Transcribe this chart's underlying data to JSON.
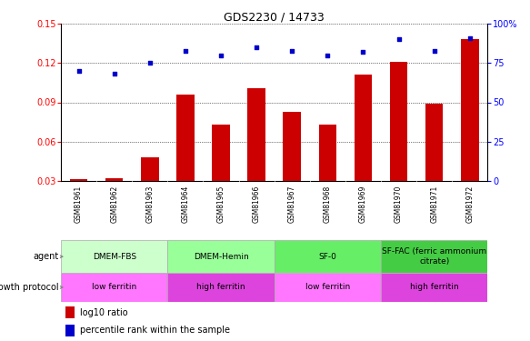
{
  "title": "GDS2230 / 14733",
  "samples": [
    "GSM81961",
    "GSM81962",
    "GSM81963",
    "GSM81964",
    "GSM81965",
    "GSM81966",
    "GSM81967",
    "GSM81968",
    "GSM81969",
    "GSM81970",
    "GSM81971",
    "GSM81972"
  ],
  "log10_ratio": [
    0.031,
    0.032,
    0.048,
    0.096,
    0.073,
    0.101,
    0.083,
    0.073,
    0.111,
    0.121,
    0.089,
    0.138
  ],
  "percentile": [
    70,
    68,
    75,
    83,
    80,
    85,
    83,
    80,
    82,
    90,
    83,
    91
  ],
  "ylim_left": [
    0.03,
    0.15
  ],
  "ylim_right": [
    0,
    100
  ],
  "yticks_left": [
    0.03,
    0.06,
    0.09,
    0.12,
    0.15
  ],
  "yticks_right": [
    0,
    25,
    50,
    75,
    100
  ],
  "bar_color": "#cc0000",
  "dot_color": "#0000cc",
  "agent_groups": [
    {
      "label": "DMEM-FBS",
      "start": 0,
      "end": 3,
      "color": "#ccffcc"
    },
    {
      "label": "DMEM-Hemin",
      "start": 3,
      "end": 6,
      "color": "#99ff99"
    },
    {
      "label": "SF-0",
      "start": 6,
      "end": 9,
      "color": "#66ee66"
    },
    {
      "label": "SF-FAC (ferric ammonium\ncitrate)",
      "start": 9,
      "end": 12,
      "color": "#44cc44"
    }
  ],
  "growth_groups": [
    {
      "label": "low ferritin",
      "start": 0,
      "end": 3,
      "color": "#ff77ff"
    },
    {
      "label": "high ferritin",
      "start": 3,
      "end": 6,
      "color": "#dd44dd"
    },
    {
      "label": "low ferritin",
      "start": 6,
      "end": 9,
      "color": "#ff77ff"
    },
    {
      "label": "high ferritin",
      "start": 9,
      "end": 12,
      "color": "#dd44dd"
    }
  ],
  "agent_label": "agent",
  "growth_label": "growth protocol",
  "legend_bar_label": "log10 ratio",
  "legend_dot_label": "percentile rank within the sample"
}
